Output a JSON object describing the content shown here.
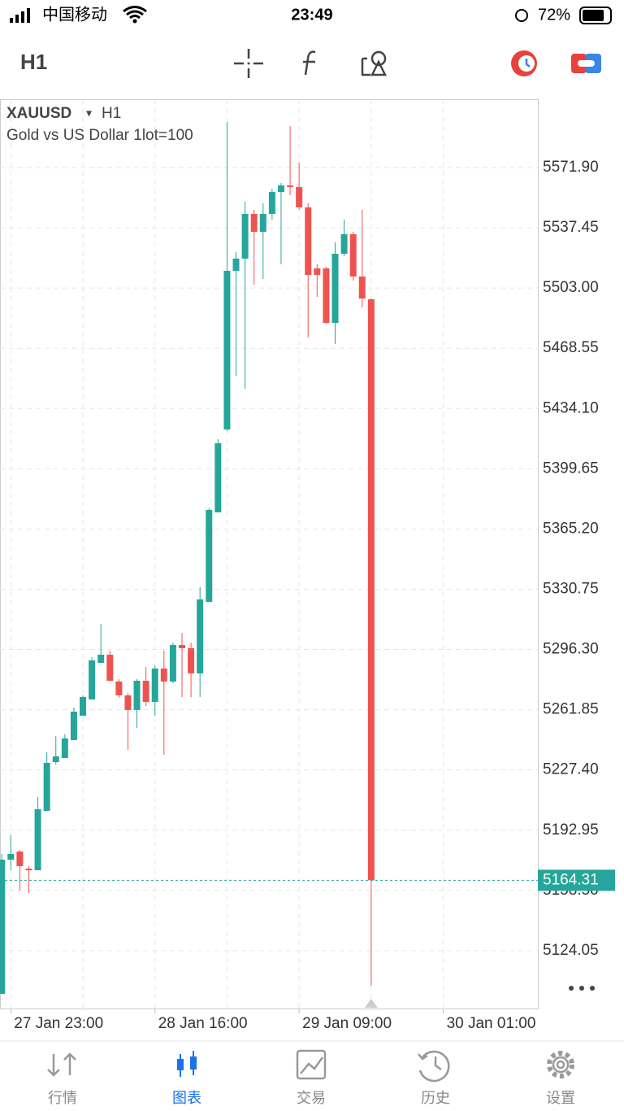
{
  "status_bar": {
    "carrier": "中国移动",
    "time": "23:49",
    "battery": "72%"
  },
  "toolbar": {
    "timeframe": "H1"
  },
  "chart_data": {
    "type": "candlestick",
    "symbol": "XAUUSD",
    "symbol_arrow": "▾",
    "timeframe": "H1",
    "subtitle": "Gold vs US Dollar 1lot=100",
    "up_color": "#26a69a",
    "down_color": "#ef5350",
    "grid": true,
    "open": [
      5099.36,
      5176.1,
      5180.75,
      5170.98,
      5170.05,
      5204.01,
      5231.91,
      5234.24,
      5244.47,
      5258.42,
      5267.72,
      5288.65,
      5293.31,
      5277.96,
      5270.05,
      5261.68,
      5278.42,
      5266.33,
      5285.4,
      5277.96,
      5298.89,
      5297.03,
      5282.61,
      5323.54,
      5374.7,
      5422.14,
      5512.83,
      5519.81,
      5545.39,
      5535.16,
      5545.39,
      5557.95,
      5561.67,
      5560.74,
      5549.11,
      5514.23,
      5514.23,
      5483.07,
      5522.6,
      5533.76,
      5509.58,
      5496.55
    ],
    "high": [
      5179.36,
      5190.05,
      5181.68,
      5172.38,
      5211.91,
      5237.49,
      5246.8,
      5247.73,
      5263.07,
      5270.05,
      5291.91,
      5310.98,
      5295.63,
      5279.35,
      5271.45,
      5279.35,
      5286.33,
      5287.26,
      5295.63,
      5300.28,
      5305.86,
      5300.28,
      5331.91,
      5377.02,
      5416.56,
      5597.95,
      5523.53,
      5552.37,
      5547.71,
      5551.44,
      5559.81,
      5563.06,
      5595.62,
      5574.69,
      5551.44,
      5516.55,
      5515.16,
      5529.11,
      5542.13,
      5535.16,
      5547.71,
      5497.02
    ],
    "low": [
      5099.36,
      5170.05,
      5158.43,
      5157.03,
      5170.05,
      5204.01,
      5230.52,
      5234.24,
      5244.47,
      5258.42,
      5267.72,
      5288.65,
      5277.96,
      5268.65,
      5238.89,
      5251.45,
      5264.0,
      5258.42,
      5236.1,
      5277.03,
      5269.12,
      5269.12,
      5269.12,
      5323.54,
      5374.7,
      5421.21,
      5452.83,
      5445.39,
      5504.93,
      5508.18,
      5542.13,
      5516.55,
      5556.09,
      5547.71,
      5474.69,
      5497.95,
      5482.6,
      5470.97,
      5521.2,
      5507.25,
      5491.9,
      5104.01
    ],
    "close": [
      5176.1,
      5179.36,
      5172.38,
      5170.05,
      5204.94,
      5231.45,
      5235.17,
      5245.4,
      5260.75,
      5269.12,
      5290.05,
      5293.31,
      5278.42,
      5270.05,
      5261.68,
      5278.42,
      5266.33,
      5285.4,
      5277.96,
      5298.89,
      5297.03,
      5282.61,
      5324.93,
      5376.09,
      5414.23,
      5512.83,
      5519.81,
      5545.39,
      5535.16,
      5545.39,
      5557.95,
      5561.67,
      5560.74,
      5549.11,
      5510.51,
      5510.51,
      5483.07,
      5522.6,
      5533.76,
      5509.58,
      5497.02,
      5164.31
    ],
    "current_price": 5164.31,
    "current_color": "#26a69a",
    "xlim": [
      -0.2,
      59.5
    ],
    "xticks": [
      {
        "value": 1,
        "label": "27 Jan 23:00"
      },
      {
        "value": 17,
        "label": "28 Jan 16:00"
      },
      {
        "value": 33,
        "label": "29 Jan 09:00"
      },
      {
        "value": 49,
        "label": "30 Jan 01:00"
      }
    ],
    "ylim": [
      5090.97,
      5610.97
    ],
    "yticks": [
      {
        "value": 5124.05,
        "label": "5124.05"
      },
      {
        "value": 5158.5,
        "label": "5158.50"
      },
      {
        "value": 5192.95,
        "label": "5192.95"
      },
      {
        "value": 5227.4,
        "label": "5227.40"
      },
      {
        "value": 5261.85,
        "label": "5261.85"
      },
      {
        "value": 5296.3,
        "label": "5296.30"
      },
      {
        "value": 5330.75,
        "label": "5330.75"
      },
      {
        "value": 5365.2,
        "label": "5365.20"
      },
      {
        "value": 5399.65,
        "label": "5399.65"
      },
      {
        "value": 5434.1,
        "label": "5434.10"
      },
      {
        "value": 5468.55,
        "label": "5468.55"
      },
      {
        "value": 5503,
        "label": "5503.00"
      },
      {
        "value": 5537.45,
        "label": "5537.45"
      },
      {
        "value": 5571.9,
        "label": "5571.90"
      }
    ]
  },
  "tabs": [
    "行情",
    "图表",
    "交易",
    "历史",
    "设置"
  ]
}
